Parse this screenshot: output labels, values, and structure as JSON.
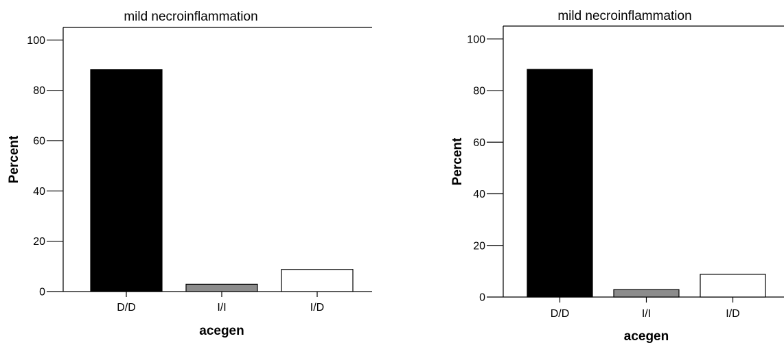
{
  "chart_data": [
    {
      "type": "bar",
      "title": "mild necroinflammation",
      "xlabel": "acegen",
      "ylabel": "Percent",
      "categories": [
        "D/D",
        "I/I",
        "I/D"
      ],
      "values": [
        88.2,
        2.9,
        8.8
      ],
      "bar_colors": [
        "#000000",
        "#8c8c8c",
        "#ffffff"
      ],
      "ylim": [
        0,
        105
      ],
      "yticks": [
        0,
        20,
        40,
        60,
        80,
        100
      ],
      "grid": false
    },
    {
      "type": "bar",
      "title": "mild necroinflammation",
      "xlabel": "acegen",
      "ylabel": "Percent",
      "categories": [
        "D/D",
        "I/I",
        "I/D"
      ],
      "values": [
        88.2,
        2.9,
        8.8
      ],
      "bar_colors": [
        "#000000",
        "#8c8c8c",
        "#ffffff"
      ],
      "ylim": [
        0,
        105
      ],
      "yticks": [
        0,
        20,
        40,
        60,
        80,
        100
      ],
      "grid": false
    }
  ]
}
